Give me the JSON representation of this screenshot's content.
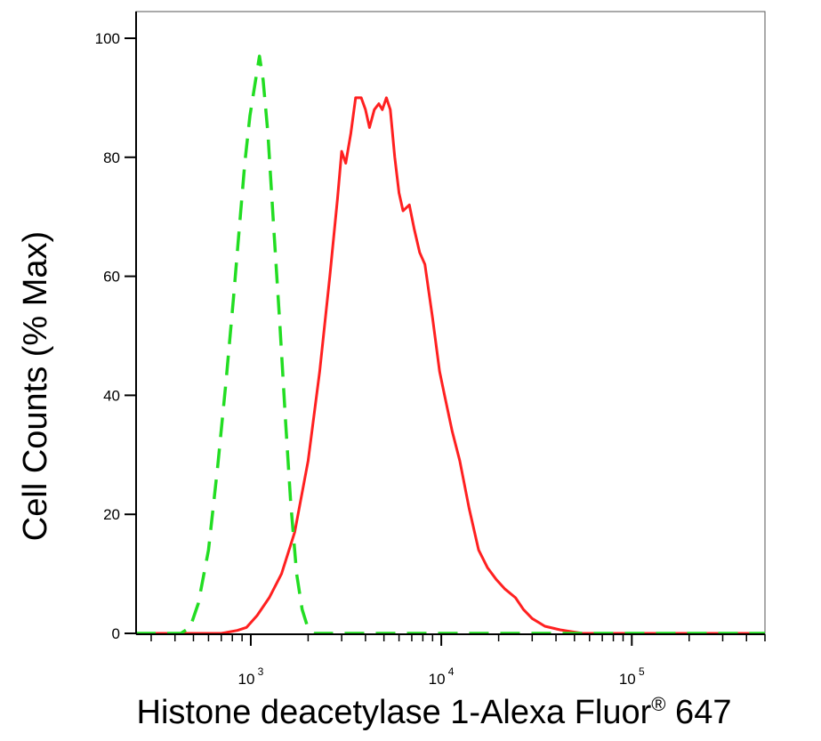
{
  "chart_data": {
    "type": "line",
    "title": "",
    "xlabel": "Histone deacetylase 1-Alexa Fluor",
    "xlabel_sup": "®",
    "xlabel_tail": " 647",
    "ylabel": "Cell Counts (% Max)",
    "x_scale": "log",
    "xlim": [
      250,
      500000
    ],
    "ylim": [
      0,
      105
    ],
    "y_ticks": [
      0,
      20,
      40,
      60,
      80,
      100
    ],
    "x_ticks": [
      {
        "value": 1000,
        "base": "10",
        "exp": "3"
      },
      {
        "value": 10000,
        "base": "10",
        "exp": "4"
      },
      {
        "value": 100000,
        "base": "10",
        "exp": "5"
      }
    ],
    "grid": false,
    "series": [
      {
        "color": "#ff2020",
        "style": "solid",
        "points": [
          [
            250,
            0
          ],
          [
            700,
            0
          ],
          [
            850,
            0.5
          ],
          [
            950,
            1
          ],
          [
            1080,
            3
          ],
          [
            1250,
            6
          ],
          [
            1450,
            10
          ],
          [
            1700,
            17
          ],
          [
            2000,
            29
          ],
          [
            2300,
            44
          ],
          [
            2600,
            60
          ],
          [
            2850,
            73
          ],
          [
            3000,
            81
          ],
          [
            3150,
            79
          ],
          [
            3350,
            84
          ],
          [
            3550,
            90
          ],
          [
            3800,
            90
          ],
          [
            4000,
            88
          ],
          [
            4200,
            85
          ],
          [
            4450,
            88
          ],
          [
            4700,
            89
          ],
          [
            4900,
            88
          ],
          [
            5150,
            90
          ],
          [
            5400,
            88
          ],
          [
            5700,
            80
          ],
          [
            6000,
            74
          ],
          [
            6300,
            71
          ],
          [
            6800,
            72
          ],
          [
            7200,
            68
          ],
          [
            7700,
            64
          ],
          [
            8200,
            62
          ],
          [
            9000,
            53
          ],
          [
            9800,
            44
          ],
          [
            10400,
            40
          ],
          [
            11400,
            34
          ],
          [
            12500,
            29
          ],
          [
            14000,
            21
          ],
          [
            15700,
            14
          ],
          [
            17500,
            11
          ],
          [
            19500,
            9
          ],
          [
            21500,
            7.5
          ],
          [
            24500,
            6
          ],
          [
            27000,
            4
          ],
          [
            30000,
            2.5
          ],
          [
            35000,
            1.2
          ],
          [
            42000,
            0.6
          ],
          [
            55000,
            0
          ],
          [
            500000,
            0
          ]
        ]
      },
      {
        "color": "#22dd22",
        "style": "dashed",
        "points": [
          [
            250,
            0
          ],
          [
            430,
            0
          ],
          [
            480,
            1
          ],
          [
            530,
            5
          ],
          [
            600,
            14
          ],
          [
            670,
            28
          ],
          [
            740,
            42
          ],
          [
            810,
            56
          ],
          [
            870,
            68
          ],
          [
            930,
            79
          ],
          [
            990,
            87
          ],
          [
            1060,
            93
          ],
          [
            1110,
            97
          ],
          [
            1160,
            93
          ],
          [
            1230,
            84
          ],
          [
            1320,
            68
          ],
          [
            1420,
            52
          ],
          [
            1520,
            36
          ],
          [
            1620,
            22
          ],
          [
            1740,
            10
          ],
          [
            1860,
            4
          ],
          [
            1990,
            1
          ],
          [
            2150,
            0
          ],
          [
            500000,
            0
          ]
        ]
      }
    ]
  }
}
